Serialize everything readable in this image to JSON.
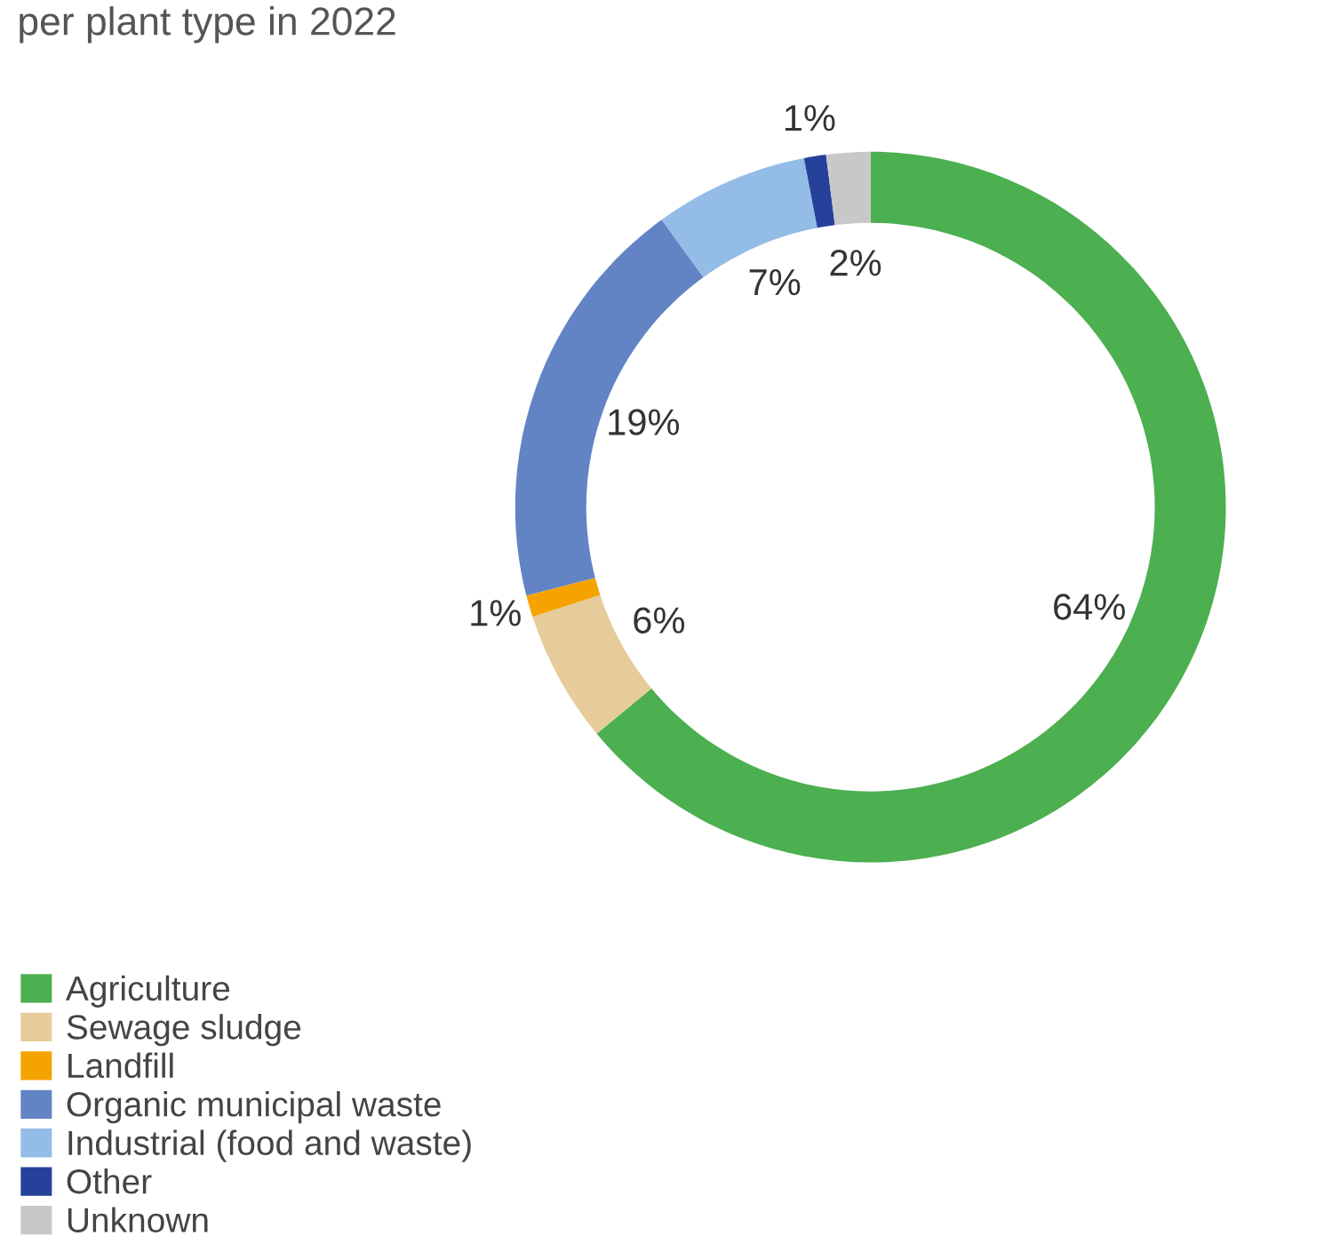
{
  "chart_data": {
    "type": "donut",
    "title": "per plant type in 2022",
    "categories": [
      "Agriculture",
      "Sewage sludge",
      "Landfill",
      "Organic municipal waste",
      "Industrial (food and waste)",
      "Other",
      "Unknown"
    ],
    "values": [
      64,
      6,
      1,
      19,
      7,
      1,
      2
    ],
    "value_labels": [
      "64%",
      "6%",
      "1%",
      "19%",
      "7%",
      "1%",
      "2%"
    ],
    "colors": [
      "#4caf50",
      "#e5cc9a",
      "#f5a300",
      "#6384c4",
      "#93bde6",
      "#25419a",
      "#c8c8c8"
    ],
    "legend": "bottom left"
  }
}
